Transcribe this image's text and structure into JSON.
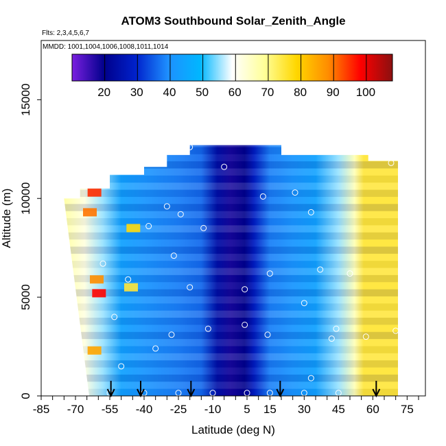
{
  "chart_data": {
    "type": "heatmap",
    "title": "ATOM3 Southbound Solar_Zenith_Angle",
    "subtitle_flights": "Flts: 2,3,4,5,6,7",
    "subtitle_dates": "MMDD: 1001,1004,1006,1008,1011,1014",
    "xlabel": "Latitude (deg N)",
    "ylabel": "Altitude (m)",
    "xlim": [
      -85,
      83
    ],
    "ylim": [
      0,
      18000
    ],
    "x_ticks": [
      -85,
      -70,
      -55,
      -40,
      -25,
      -10,
      5,
      15,
      30,
      45,
      60,
      75
    ],
    "x_tick_labels": [
      "-85",
      "-70",
      "-55",
      "-40",
      "-25",
      "-10",
      "5",
      "15",
      "30",
      "45",
      "60",
      "75"
    ],
    "y_ticks": [
      0,
      5000,
      10000,
      15000
    ],
    "y_tick_labels": [
      "0",
      "5000",
      "10000",
      "15000"
    ],
    "colorbar": {
      "min": 10,
      "max": 108,
      "ticks": [
        20,
        30,
        40,
        50,
        60,
        70,
        80,
        90,
        100
      ],
      "tick_labels": [
        "20",
        "30",
        "40",
        "50",
        "60",
        "70",
        "80",
        "90",
        "100"
      ],
      "colors": [
        "#7a1fe0",
        "#00008b",
        "#0022cc",
        "#1e90ff",
        "#00b7ff",
        "#ffffff",
        "#ffff99",
        "#ffd700",
        "#ff8c00",
        "#ff0000",
        "#8b1010"
      ]
    },
    "field_outline": {
      "lat_left_at_top": -75,
      "lat_left_at_bottom": -64,
      "lat_right": 71,
      "alt_top_center": 12700
    },
    "lat_profile": [
      {
        "lat": -75,
        "value": 68
      },
      {
        "lat": -66,
        "value": 62
      },
      {
        "lat": -58,
        "value": 55
      },
      {
        "lat": -50,
        "value": 44
      },
      {
        "lat": -40,
        "value": 41
      },
      {
        "lat": -25,
        "value": 38
      },
      {
        "lat": -15,
        "value": 36
      },
      {
        "lat": -8,
        "value": 24
      },
      {
        "lat": -2,
        "value": 18
      },
      {
        "lat": 4,
        "value": 20
      },
      {
        "lat": 8,
        "value": 28
      },
      {
        "lat": 15,
        "value": 38
      },
      {
        "lat": 25,
        "value": 41
      },
      {
        "lat": 35,
        "value": 44
      },
      {
        "lat": 45,
        "value": 55
      },
      {
        "lat": 52,
        "value": 66
      },
      {
        "lat": 56,
        "value": 75
      },
      {
        "lat": 71,
        "value": 75
      }
    ],
    "hot_spots": [
      {
        "lat": -60,
        "alt": 5200,
        "value": 98
      },
      {
        "lat": -62,
        "alt": 10300,
        "value": 95
      },
      {
        "lat": -64,
        "alt": 9300,
        "value": 90
      },
      {
        "lat": -62,
        "alt": 2300,
        "value": 85
      },
      {
        "lat": -61,
        "alt": 5900,
        "value": 88
      },
      {
        "lat": -45,
        "alt": 8500,
        "value": 78
      },
      {
        "lat": -46,
        "alt": 5500,
        "value": 75
      }
    ],
    "sample_points": [
      {
        "lat": -55,
        "alt": 150
      },
      {
        "lat": -40,
        "alt": 150
      },
      {
        "lat": -25,
        "alt": 150
      },
      {
        "lat": -10,
        "alt": 150
      },
      {
        "lat": 5,
        "alt": 150
      },
      {
        "lat": 15,
        "alt": 150
      },
      {
        "lat": 30,
        "alt": 150
      },
      {
        "lat": 45,
        "alt": 150
      },
      {
        "lat": -50,
        "alt": 1500
      },
      {
        "lat": -35,
        "alt": 2400
      },
      {
        "lat": -28,
        "alt": 3100
      },
      {
        "lat": -12,
        "alt": 3400
      },
      {
        "lat": 4,
        "alt": 3600
      },
      {
        "lat": 14,
        "alt": 3100
      },
      {
        "lat": 33,
        "alt": 900
      },
      {
        "lat": 44,
        "alt": 3400
      },
      {
        "lat": -47,
        "alt": 5900
      },
      {
        "lat": -20,
        "alt": 5500
      },
      {
        "lat": 4,
        "alt": 5400
      },
      {
        "lat": 15,
        "alt": 6200
      },
      {
        "lat": 30,
        "alt": 4700
      },
      {
        "lat": 50,
        "alt": 6200
      },
      {
        "lat": -38,
        "alt": 8600
      },
      {
        "lat": -24,
        "alt": 9200
      },
      {
        "lat": -14,
        "alt": 8500
      },
      {
        "lat": 12,
        "alt": 10100
      },
      {
        "lat": 26,
        "alt": 10300
      },
      {
        "lat": 33,
        "alt": 9300
      },
      {
        "lat": -30,
        "alt": 9600
      },
      {
        "lat": -20,
        "alt": 12600
      },
      {
        "lat": 22,
        "alt": 12500
      },
      {
        "lat": -5,
        "alt": 11600
      },
      {
        "lat": 70,
        "alt": 3300
      },
      {
        "lat": 57,
        "alt": 3000
      },
      {
        "lat": 68,
        "alt": 11800
      },
      {
        "lat": -58,
        "alt": 6700
      },
      {
        "lat": -27,
        "alt": 7100
      },
      {
        "lat": 37,
        "alt": 6400
      },
      {
        "lat": 42,
        "alt": 2900
      },
      {
        "lat": -53,
        "alt": 4000
      }
    ],
    "arrows_lat": [
      -54.5,
      -41.5,
      -19.5,
      19.5,
      61.5
    ],
    "grid": false,
    "legend_position": "top"
  }
}
